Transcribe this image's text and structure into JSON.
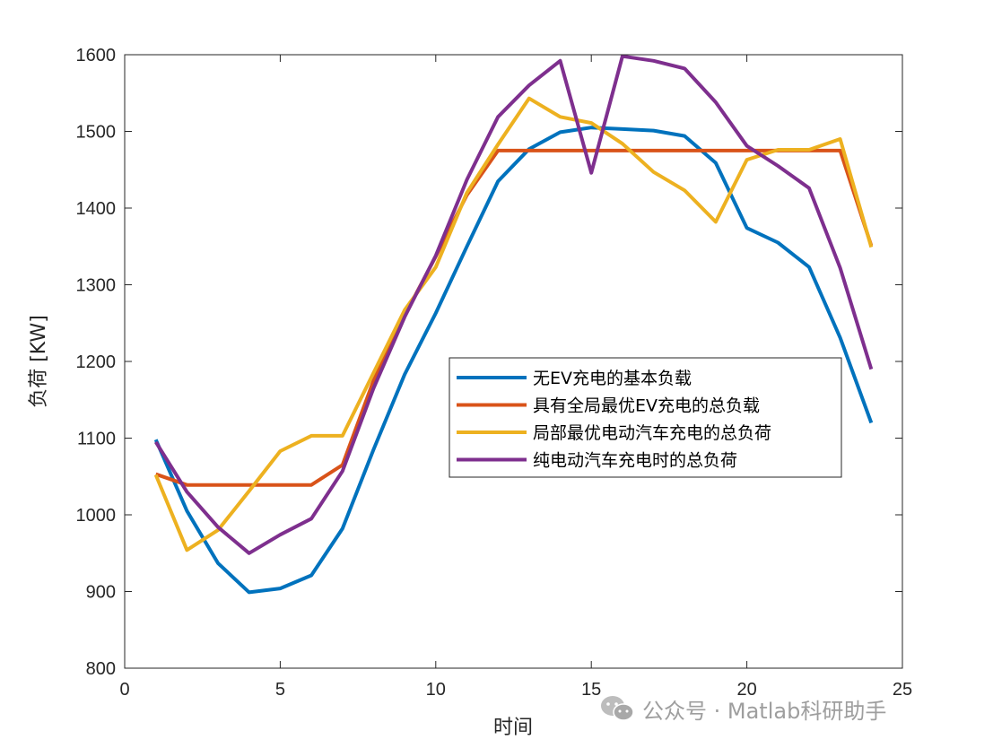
{
  "chart_data": {
    "type": "line",
    "xlabel": "时间",
    "ylabel": "负荷 [KW]",
    "xlim": [
      0,
      25
    ],
    "ylim": [
      800,
      1600
    ],
    "xticks": [
      0,
      5,
      10,
      15,
      20,
      25
    ],
    "yticks": [
      800,
      900,
      1000,
      1100,
      1200,
      1300,
      1400,
      1500,
      1600
    ],
    "grid": false,
    "legend_position": "center-right",
    "x": [
      1,
      2,
      3,
      4,
      5,
      6,
      7,
      8,
      9,
      10,
      11,
      12,
      13,
      14,
      15,
      16,
      17,
      18,
      19,
      20,
      21,
      22,
      23,
      24
    ],
    "series": [
      {
        "name": "无EV充电的基本负载",
        "color": "#0072BD",
        "values": [
          1098,
          1005,
          937,
          899,
          904,
          921,
          982,
          1085,
          1183,
          1263,
          1350,
          1435,
          1477,
          1499,
          1505,
          1503,
          1501,
          1494,
          1459,
          1374,
          1355,
          1323,
          1231,
          1120
        ]
      },
      {
        "name": "具有全局最优EV充电的总负载",
        "color": "#D95319",
        "values": [
          1053,
          1039,
          1039,
          1039,
          1039,
          1039,
          1065,
          1175,
          1260,
          1337,
          1417,
          1475,
          1475,
          1475,
          1475,
          1475,
          1475,
          1475,
          1475,
          1475,
          1475,
          1475,
          1475,
          1351
        ]
      },
      {
        "name": "局部最优电动汽车充电的总负荷",
        "color": "#EDB120",
        "values": [
          1052,
          954,
          980,
          1031,
          1083,
          1103,
          1103,
          1185,
          1267,
          1323,
          1420,
          1483,
          1543,
          1519,
          1511,
          1484,
          1447,
          1423,
          1382,
          1463,
          1476,
          1476,
          1490,
          1349
        ]
      },
      {
        "name": "纯电动汽车充电时的总负荷",
        "color": "#7E2F8E",
        "values": [
          1095,
          1030,
          984,
          950,
          974,
          995,
          1057,
          1165,
          1258,
          1338,
          1437,
          1519,
          1560,
          1592,
          1446,
          1598,
          1592,
          1582,
          1538,
          1481,
          1455,
          1426,
          1322,
          1190
        ]
      }
    ]
  },
  "watermark": {
    "text": "公众号 · Matlab科研助手",
    "icon": "wechat-icon"
  }
}
